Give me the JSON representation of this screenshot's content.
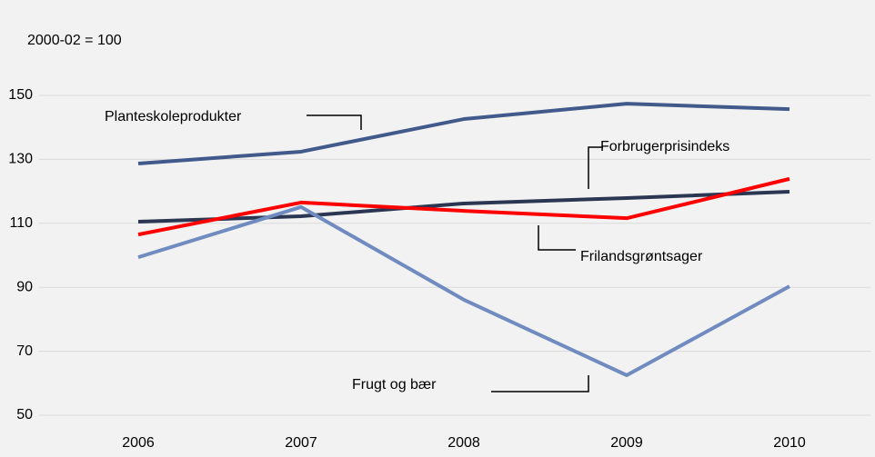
{
  "chart_data": {
    "type": "line",
    "y_axis_label": "2000-02 = 100",
    "categories": [
      "2006",
      "2007",
      "2008",
      "2009",
      "2010"
    ],
    "ylim": [
      50,
      160
    ],
    "yticks": [
      50,
      70,
      90,
      110,
      130,
      150
    ],
    "grid": true,
    "series": [
      {
        "name": "Planteskoleprodukter",
        "color": "#41598b",
        "values": [
          128.7,
          132.4,
          142.6,
          147.4,
          145.7
        ]
      },
      {
        "name": "Forbrugerprisindeks",
        "color": "#2b3752",
        "values": [
          110.5,
          112.2,
          116.2,
          117.9,
          119.9
        ]
      },
      {
        "name": "Frilandsgrøntsager",
        "color": "#ff0000",
        "values": [
          106.5,
          116.5,
          113.9,
          111.6,
          123.9
        ]
      },
      {
        "name": "Frugt og bær",
        "color": "#6f8bbf",
        "values": [
          99.4,
          115.1,
          86.1,
          62.5,
          90.3
        ]
      }
    ]
  }
}
